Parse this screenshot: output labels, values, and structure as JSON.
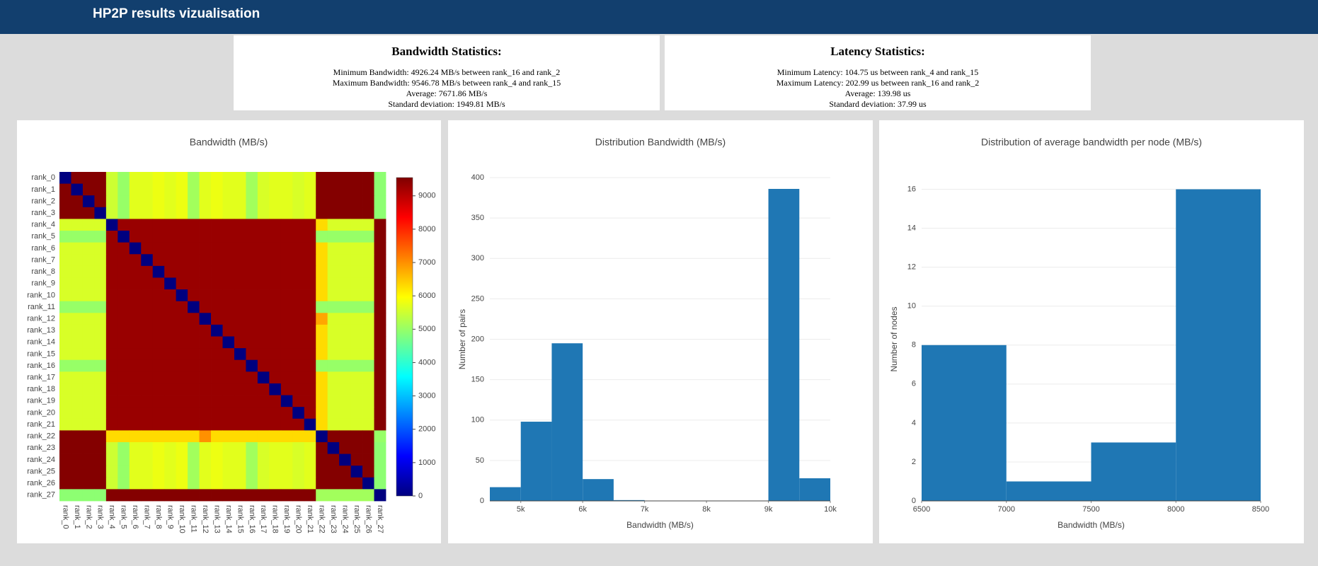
{
  "header": {
    "title": "HP2P results vizualisation"
  },
  "bandwidth_stats": {
    "title": "Bandwidth Statistics:",
    "lines": [
      "Minimum Bandwidth: 4926.24 MB/s between rank_16 and rank_2",
      "Maximum Bandwidth: 9546.78 MB/s between rank_4 and rank_15",
      "Average: 7671.86 MB/s",
      "Standard deviation: 1949.81 MB/s"
    ]
  },
  "latency_stats": {
    "title": "Latency Statistics:",
    "lines": [
      "Minimum Latency: 104.75 us between rank_4 and rank_15",
      "Maximum Latency: 202.99 us between rank_16 and rank_2",
      "Average: 139.98 us",
      "Standard deviation: 37.99 us"
    ]
  },
  "chart_data": [
    {
      "type": "heatmap",
      "title": "Bandwidth (MB/s)",
      "categories": [
        "rank_0",
        "rank_1",
        "rank_2",
        "rank_3",
        "rank_4",
        "rank_5",
        "rank_6",
        "rank_7",
        "rank_8",
        "rank_9",
        "rank_10",
        "rank_11",
        "rank_12",
        "rank_13",
        "rank_14",
        "rank_15",
        "rank_16",
        "rank_17",
        "rank_18",
        "rank_19",
        "rank_20",
        "rank_21",
        "rank_22",
        "rank_23",
        "rank_24",
        "rank_25",
        "rank_26",
        "rank_27"
      ],
      "zlim": [
        0,
        9547
      ],
      "zticks": [
        0,
        1000,
        2000,
        3000,
        4000,
        5000,
        6000,
        7000,
        8000,
        9000
      ],
      "colorscale": [
        "#00007f",
        "#0000ff",
        "#007fff",
        "#00ffff",
        "#7fff7f",
        "#ffff00",
        "#ff7f00",
        "#ff0000",
        "#7f0000"
      ],
      "values": [
        [
          0,
          9500,
          9500,
          9500,
          5500,
          5000,
          5700,
          5700,
          5800,
          5700,
          5800,
          5100,
          5700,
          5800,
          5700,
          5700,
          5100,
          5600,
          5700,
          5700,
          5600,
          5700,
          9500,
          9500,
          9500,
          9500,
          9500,
          4900
        ],
        [
          9500,
          0,
          9500,
          9500,
          5500,
          5000,
          5700,
          5700,
          5800,
          5700,
          5800,
          5100,
          5700,
          5800,
          5700,
          5700,
          5100,
          5600,
          5700,
          5700,
          5600,
          5700,
          9500,
          9500,
          9500,
          9500,
          9500,
          4900
        ],
        [
          9500,
          9500,
          0,
          9500,
          5500,
          5000,
          5700,
          5700,
          5800,
          5700,
          5800,
          5100,
          5700,
          5800,
          5700,
          5700,
          5100,
          5600,
          5700,
          5700,
          5600,
          5700,
          9500,
          9500,
          9500,
          9500,
          9500,
          4900
        ],
        [
          9500,
          9500,
          9500,
          0,
          5500,
          5000,
          5700,
          5700,
          5800,
          5700,
          5800,
          5100,
          5700,
          5800,
          5700,
          5700,
          5100,
          5600,
          5700,
          5700,
          5600,
          5700,
          9500,
          9500,
          9500,
          9500,
          9500,
          4900
        ],
        [
          5600,
          5600,
          5600,
          5600,
          0,
          9300,
          9300,
          9300,
          9300,
          9300,
          9300,
          9300,
          9300,
          9300,
          9300,
          9300,
          9300,
          9300,
          9300,
          9300,
          9300,
          9300,
          6300,
          5600,
          5600,
          5600,
          5600,
          9500
        ],
        [
          5000,
          5000,
          5000,
          5000,
          9300,
          0,
          9300,
          9300,
          9300,
          9300,
          9300,
          9300,
          9300,
          9300,
          9300,
          9300,
          9300,
          9300,
          9300,
          9300,
          9300,
          9300,
          5000,
          5000,
          5000,
          5000,
          5000,
          9500
        ],
        [
          5600,
          5600,
          5600,
          5600,
          9300,
          9300,
          0,
          9300,
          9300,
          9300,
          9300,
          9300,
          9300,
          9300,
          9300,
          9300,
          9300,
          9300,
          9300,
          9300,
          9300,
          9300,
          6300,
          5600,
          5600,
          5600,
          5600,
          9500
        ],
        [
          5600,
          5600,
          5600,
          5600,
          9300,
          9300,
          9300,
          0,
          9300,
          9300,
          9300,
          9300,
          9300,
          9300,
          9300,
          9300,
          9300,
          9300,
          9300,
          9300,
          9300,
          9300,
          6300,
          5600,
          5600,
          5600,
          5600,
          9500
        ],
        [
          5600,
          5600,
          5600,
          5600,
          9300,
          9300,
          9300,
          9300,
          0,
          9300,
          9300,
          9300,
          9300,
          9300,
          9300,
          9300,
          9300,
          9300,
          9300,
          9300,
          9300,
          9300,
          6300,
          5600,
          5600,
          5600,
          5600,
          9500
        ],
        [
          5600,
          5600,
          5600,
          5600,
          9300,
          9300,
          9300,
          9300,
          9300,
          0,
          9300,
          9300,
          9300,
          9300,
          9300,
          9300,
          9300,
          9300,
          9300,
          9300,
          9300,
          9300,
          6300,
          5600,
          5600,
          5600,
          5600,
          9500
        ],
        [
          5600,
          5600,
          5600,
          5600,
          9300,
          9300,
          9300,
          9300,
          9300,
          9300,
          0,
          9300,
          9300,
          9300,
          9300,
          9300,
          9300,
          9300,
          9300,
          9300,
          9300,
          9300,
          6300,
          5600,
          5600,
          5600,
          5600,
          9500
        ],
        [
          5000,
          5000,
          5000,
          5000,
          9300,
          9300,
          9300,
          9300,
          9300,
          9300,
          9300,
          0,
          9300,
          9300,
          9300,
          9300,
          9300,
          9300,
          9300,
          9300,
          9300,
          9300,
          5000,
          5000,
          5000,
          5000,
          5000,
          9500
        ],
        [
          5600,
          5600,
          5600,
          5600,
          9300,
          9300,
          9300,
          9300,
          9300,
          9300,
          9300,
          9300,
          0,
          9300,
          9300,
          9300,
          9300,
          9300,
          9300,
          9300,
          9300,
          9300,
          6800,
          5600,
          5600,
          5600,
          5600,
          9500
        ],
        [
          5600,
          5600,
          5600,
          5600,
          9300,
          9300,
          9300,
          9300,
          9300,
          9300,
          9300,
          9300,
          9300,
          0,
          9300,
          9300,
          9300,
          9300,
          9300,
          9300,
          9300,
          9300,
          6300,
          5600,
          5600,
          5600,
          5600,
          9500
        ],
        [
          5600,
          5600,
          5600,
          5600,
          9300,
          9300,
          9300,
          9300,
          9300,
          9300,
          9300,
          9300,
          9300,
          9300,
          0,
          9300,
          9300,
          9300,
          9300,
          9300,
          9300,
          9300,
          6300,
          5600,
          5600,
          5600,
          5600,
          9500
        ],
        [
          5600,
          5600,
          5600,
          5600,
          9300,
          9300,
          9300,
          9300,
          9300,
          9300,
          9300,
          9300,
          9300,
          9300,
          9300,
          0,
          9300,
          9300,
          9300,
          9300,
          9300,
          9300,
          6300,
          5600,
          5600,
          5600,
          5600,
          9500
        ],
        [
          5000,
          5000,
          5000,
          5000,
          9300,
          9300,
          9300,
          9300,
          9300,
          9300,
          9300,
          9300,
          9300,
          9300,
          9300,
          9300,
          0,
          9300,
          9300,
          9300,
          9300,
          9300,
          5000,
          5000,
          5000,
          5000,
          5000,
          9500
        ],
        [
          5600,
          5600,
          5600,
          5600,
          9300,
          9300,
          9300,
          9300,
          9300,
          9300,
          9300,
          9300,
          9300,
          9300,
          9300,
          9300,
          9300,
          0,
          9300,
          9300,
          9300,
          9300,
          6300,
          5600,
          5600,
          5600,
          5600,
          9500
        ],
        [
          5600,
          5600,
          5600,
          5600,
          9300,
          9300,
          9300,
          9300,
          9300,
          9300,
          9300,
          9300,
          9300,
          9300,
          9300,
          9300,
          9300,
          9300,
          0,
          9300,
          9300,
          9300,
          6300,
          5600,
          5600,
          5600,
          5600,
          9500
        ],
        [
          5600,
          5600,
          5600,
          5600,
          9300,
          9300,
          9300,
          9300,
          9300,
          9300,
          9300,
          9300,
          9300,
          9300,
          9300,
          9300,
          9300,
          9300,
          9300,
          0,
          9300,
          9300,
          6300,
          5600,
          5600,
          5600,
          5600,
          9500
        ],
        [
          5600,
          5600,
          5600,
          5600,
          9300,
          9300,
          9300,
          9300,
          9300,
          9300,
          9300,
          9300,
          9300,
          9300,
          9300,
          9300,
          9300,
          9300,
          9300,
          9300,
          0,
          9300,
          6300,
          5600,
          5600,
          5600,
          5600,
          9500
        ],
        [
          5600,
          5600,
          5600,
          5600,
          9300,
          9300,
          9300,
          9300,
          9300,
          9300,
          9300,
          9300,
          9300,
          9300,
          9300,
          9300,
          9300,
          9300,
          9300,
          9300,
          9300,
          0,
          6300,
          5600,
          5600,
          5600,
          5600,
          9500
        ],
        [
          9500,
          9500,
          9500,
          9500,
          6300,
          6300,
          6300,
          6300,
          6300,
          6300,
          6300,
          6300,
          7000,
          6300,
          6300,
          6300,
          6300,
          6300,
          6300,
          6300,
          6300,
          6300,
          0,
          9500,
          9500,
          9500,
          9500,
          5000
        ],
        [
          9500,
          9500,
          9500,
          9500,
          5500,
          5000,
          5700,
          5700,
          5800,
          5700,
          5800,
          5100,
          5700,
          5800,
          5700,
          5700,
          5100,
          5600,
          5700,
          5700,
          5600,
          5700,
          9500,
          0,
          9500,
          9500,
          9500,
          4900
        ],
        [
          9500,
          9500,
          9500,
          9500,
          5500,
          5000,
          5700,
          5700,
          5800,
          5700,
          5800,
          5100,
          5700,
          5800,
          5700,
          5700,
          5100,
          5600,
          5700,
          5700,
          5600,
          5700,
          9500,
          9500,
          0,
          9500,
          9500,
          4900
        ],
        [
          9500,
          9500,
          9500,
          9500,
          5500,
          5000,
          5700,
          5700,
          5800,
          5700,
          5800,
          5100,
          5700,
          5800,
          5700,
          5700,
          5100,
          5600,
          5700,
          5700,
          5600,
          5700,
          9500,
          9500,
          9500,
          0,
          9500,
          4900
        ],
        [
          9500,
          9500,
          9500,
          9500,
          5500,
          5000,
          5700,
          5700,
          5800,
          5700,
          5800,
          5100,
          5700,
          5800,
          5700,
          5700,
          5100,
          5600,
          5700,
          5700,
          5600,
          5700,
          9500,
          9500,
          9500,
          9500,
          0,
          4900
        ],
        [
          4900,
          4900,
          4900,
          4900,
          9500,
          9500,
          9500,
          9500,
          9500,
          9500,
          9500,
          9500,
          9500,
          9500,
          9500,
          9500,
          9500,
          9500,
          9500,
          9500,
          9500,
          9500,
          5100,
          5100,
          5100,
          5100,
          5100,
          0
        ]
      ]
    },
    {
      "type": "histogram",
      "title": "Distribution Bandwidth (MB/s)",
      "xlabel": "Bandwidth (MB/s)",
      "ylabel": "Number of pairs",
      "color": "#1f77b4",
      "bins": [
        4500,
        5000,
        5500,
        6000,
        6500,
        7000,
        7500,
        8000,
        8500,
        9000,
        9500,
        10000
      ],
      "values": [
        17,
        98,
        195,
        27,
        1,
        0,
        0,
        0,
        0,
        386,
        28
      ],
      "xlim": [
        4500,
        10000
      ],
      "xticks": [
        {
          "value": 5000,
          "label": "5k"
        },
        {
          "value": 6000,
          "label": "6k"
        },
        {
          "value": 7000,
          "label": "7k"
        },
        {
          "value": 8000,
          "label": "8k"
        },
        {
          "value": 9000,
          "label": "9k"
        },
        {
          "value": 10000,
          "label": "10k"
        }
      ],
      "ylim": [
        0,
        400
      ],
      "yticks": [
        0,
        50,
        100,
        150,
        200,
        250,
        300,
        350,
        400
      ],
      "grid": true
    },
    {
      "type": "histogram",
      "title": "Distribution of average bandwidth per node (MB/s)",
      "xlabel": "Bandwidth (MB/s)",
      "ylabel": "Number of nodes",
      "color": "#1f77b4",
      "bins": [
        6500,
        7000,
        7500,
        8000,
        8500
      ],
      "values": [
        8,
        1,
        3,
        16
      ],
      "xlim": [
        6500,
        8500
      ],
      "xticks": [
        6500,
        7000,
        7500,
        8000,
        8500
      ],
      "ylim": [
        0,
        16.6
      ],
      "yticks": [
        0,
        2,
        4,
        6,
        8,
        10,
        12,
        14,
        16
      ],
      "grid": true
    }
  ]
}
